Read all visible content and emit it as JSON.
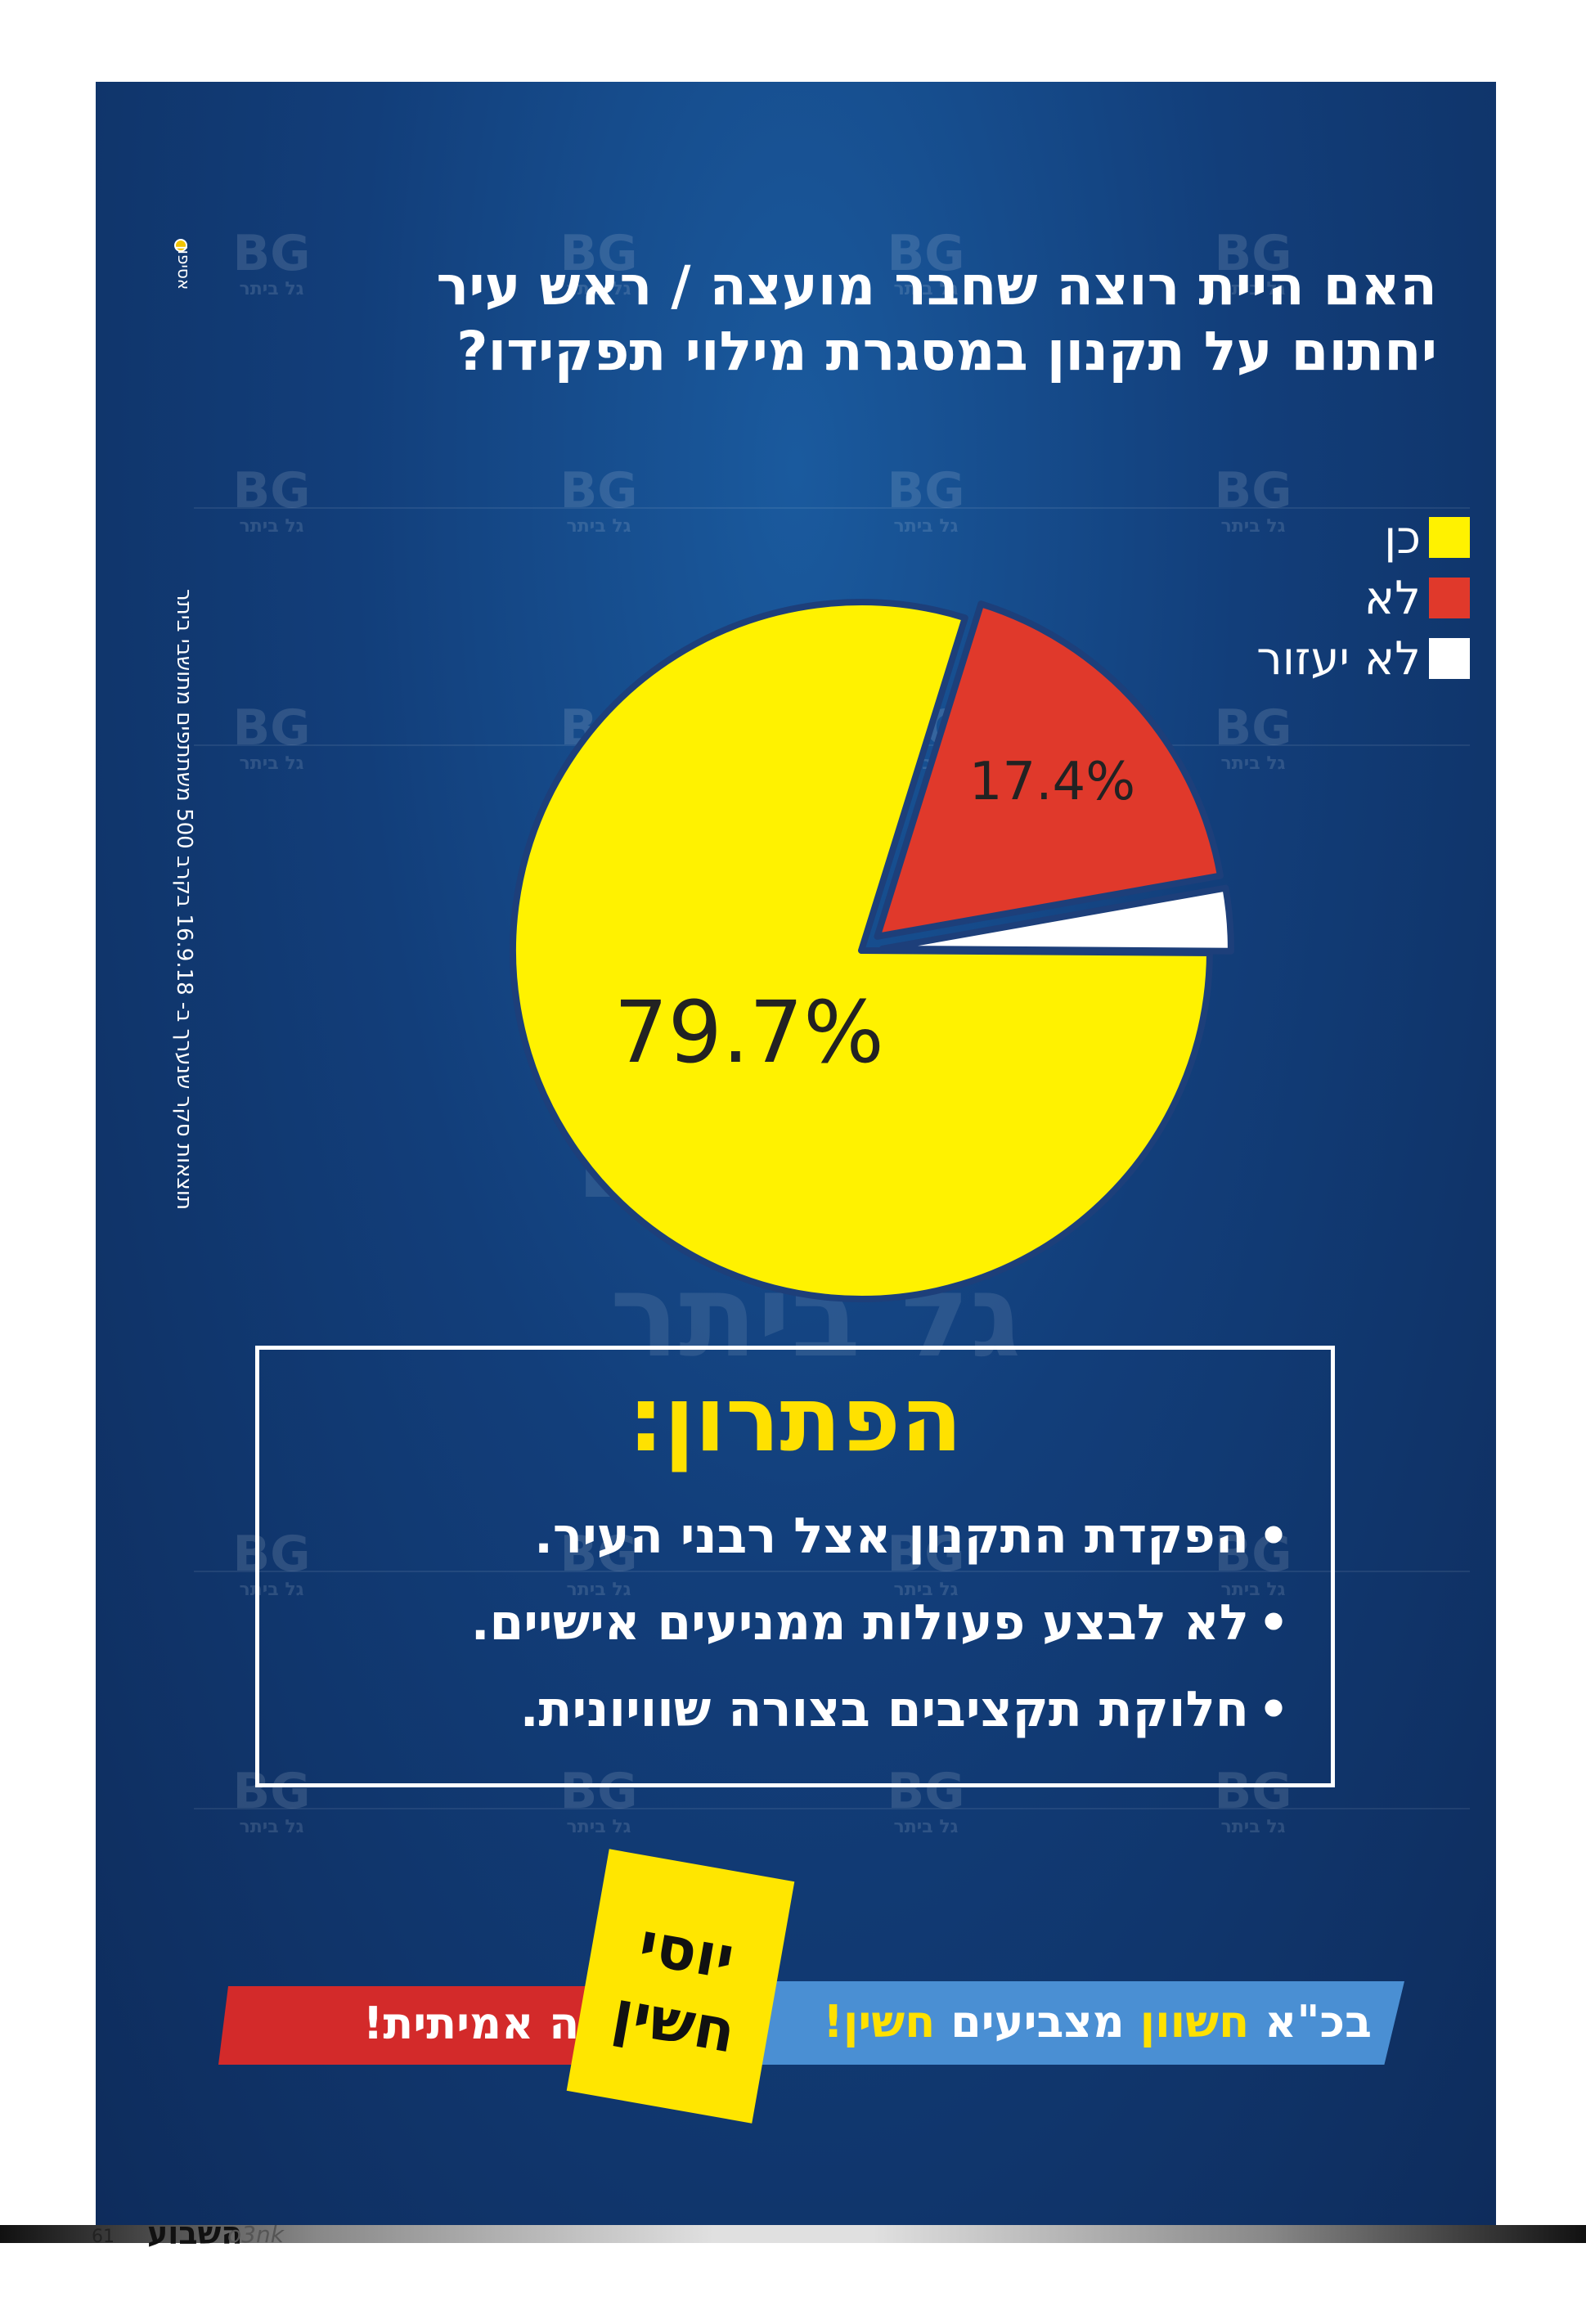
{
  "credit": "אסיפון",
  "survey_note": "תוצאות סקר שנערך ב- 16.9.18 בקרב 500 משתתפים מתושבי ביתר",
  "question": {
    "line1": "האם היית רוצה שחבר מועצה / ראש עיר",
    "line2": "יחתום על תקנון במסגרת מילוי תפקידו?"
  },
  "chart_data": {
    "type": "pie",
    "categories": [
      "כן",
      "לא",
      "לא יעזור"
    ],
    "values": [
      79.7,
      17.4,
      2.9
    ],
    "colors": [
      "#fff200",
      "#e0392b",
      "#ffffff"
    ],
    "data_labels": [
      "79.7%",
      "17.4%",
      ""
    ],
    "legend": {
      "position": "top-right",
      "entries": [
        "כן",
        "לא",
        "לא יעזור"
      ]
    }
  },
  "watermark": {
    "mark": "BG",
    "text": "גל ביתר"
  },
  "solution": {
    "title": "הפתרון:",
    "bullet": "•",
    "items": [
      "הפקדת התקנון אצל רבני העיר.",
      "לא לבצע פעולות ממניעים אישיים.",
      "חלוקת תקציבים בצורה שוויונית."
    ]
  },
  "banner": {
    "red_text": "עשייה אמיתית!",
    "blue_prefix": "בכ\"א",
    "blue_highlight1": "חשוון",
    "blue_mid": "מצביעים",
    "blue_highlight2": "חשין!",
    "name_line1": "יוסי",
    "name_line2": "חשין"
  },
  "footer": {
    "page_number": "61",
    "publication": "השבוע",
    "publication_sub": "o3nk"
  }
}
